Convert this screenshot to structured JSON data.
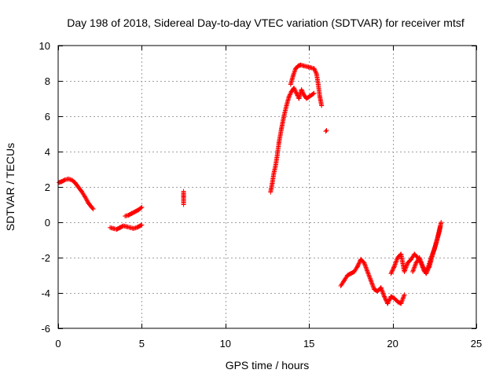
{
  "chart_data": {
    "type": "scatter",
    "title": "Day 198 of 2018, Sidereal Day-to-day VTEC variation (SDTVAR) for receiver mtsf",
    "xlabel": "GPS time / hours",
    "ylabel": "SDTVAR / TECUs",
    "xlim": [
      0,
      25
    ],
    "ylim": [
      -6,
      10
    ],
    "xticks": [
      0,
      5,
      10,
      15,
      20,
      25
    ],
    "yticks": [
      -6,
      -4,
      -2,
      0,
      2,
      4,
      6,
      8,
      10
    ],
    "grid": true,
    "marker": "plus",
    "series": [
      {
        "name": "SDTVAR",
        "color": "#ff0000",
        "segments": [
          [
            [
              0.05,
              2.25
            ],
            [
              0.2,
              2.3
            ],
            [
              0.4,
              2.4
            ],
            [
              0.6,
              2.45
            ],
            [
              0.8,
              2.4
            ],
            [
              1.0,
              2.25
            ],
            [
              1.2,
              2.0
            ],
            [
              1.4,
              1.75
            ],
            [
              1.6,
              1.45
            ],
            [
              1.8,
              1.1
            ],
            [
              2.0,
              0.85
            ],
            [
              2.1,
              0.75
            ]
          ],
          [
            [
              3.1,
              -0.3
            ],
            [
              3.3,
              -0.35
            ],
            [
              3.5,
              -0.4
            ],
            [
              3.7,
              -0.3
            ],
            [
              3.9,
              -0.2
            ],
            [
              4.1,
              -0.25
            ],
            [
              4.3,
              -0.3
            ],
            [
              4.5,
              -0.35
            ],
            [
              4.7,
              -0.3
            ],
            [
              4.9,
              -0.2
            ],
            [
              5.0,
              -0.15
            ]
          ],
          [
            [
              4.0,
              0.35
            ],
            [
              4.2,
              0.4
            ],
            [
              4.4,
              0.5
            ],
            [
              4.6,
              0.6
            ],
            [
              4.8,
              0.7
            ],
            [
              5.0,
              0.85
            ]
          ],
          [
            [
              7.5,
              1.0
            ],
            [
              7.5,
              1.2
            ],
            [
              7.5,
              1.5
            ],
            [
              7.5,
              1.75
            ]
          ],
          [
            [
              12.7,
              1.7
            ],
            [
              12.8,
              2.2
            ],
            [
              12.9,
              2.8
            ],
            [
              13.0,
              3.2
            ],
            [
              13.1,
              3.8
            ],
            [
              13.2,
              4.5
            ],
            [
              13.35,
              5.3
            ],
            [
              13.5,
              6.0
            ],
            [
              13.65,
              6.6
            ],
            [
              13.8,
              7.1
            ],
            [
              13.95,
              7.4
            ],
            [
              14.1,
              7.6
            ],
            [
              14.25,
              7.3
            ],
            [
              14.4,
              7.0
            ],
            [
              14.55,
              7.5
            ],
            [
              14.7,
              7.2
            ],
            [
              14.85,
              7.0
            ],
            [
              15.0,
              7.1
            ],
            [
              15.15,
              7.2
            ],
            [
              15.3,
              7.3
            ]
          ],
          [
            [
              13.9,
              7.8
            ],
            [
              14.05,
              8.3
            ],
            [
              14.2,
              8.7
            ],
            [
              14.35,
              8.85
            ],
            [
              14.5,
              8.9
            ],
            [
              14.7,
              8.85
            ],
            [
              14.9,
              8.8
            ],
            [
              15.1,
              8.75
            ],
            [
              15.3,
              8.7
            ],
            [
              15.45,
              8.4
            ],
            [
              15.55,
              7.8
            ],
            [
              15.65,
              7.1
            ],
            [
              15.75,
              6.6
            ]
          ],
          [
            [
              16.0,
              5.15
            ],
            [
              16.05,
              5.2
            ]
          ],
          [
            [
              16.9,
              -3.6
            ],
            [
              17.1,
              -3.3
            ],
            [
              17.3,
              -3.0
            ],
            [
              17.5,
              -2.9
            ],
            [
              17.7,
              -2.8
            ],
            [
              17.9,
              -2.5
            ],
            [
              18.1,
              -2.1
            ],
            [
              18.3,
              -2.3
            ],
            [
              18.5,
              -2.8
            ],
            [
              18.7,
              -3.3
            ],
            [
              18.9,
              -3.8
            ],
            [
              19.1,
              -3.9
            ],
            [
              19.3,
              -3.7
            ],
            [
              19.5,
              -4.2
            ],
            [
              19.7,
              -4.6
            ],
            [
              19.9,
              -4.2
            ],
            [
              20.1,
              -4.3
            ],
            [
              20.3,
              -4.5
            ],
            [
              20.5,
              -4.6
            ],
            [
              20.7,
              -4.1
            ]
          ],
          [
            [
              19.9,
              -2.9
            ],
            [
              20.1,
              -2.5
            ],
            [
              20.3,
              -2.0
            ],
            [
              20.5,
              -1.8
            ],
            [
              20.7,
              -2.8
            ],
            [
              20.9,
              -2.3
            ],
            [
              21.1,
              -2.1
            ],
            [
              21.3,
              -1.8
            ],
            [
              21.5,
              -2.0
            ],
            [
              21.7,
              -2.3
            ],
            [
              21.9,
              -2.8
            ],
            [
              22.1,
              -2.6
            ],
            [
              22.3,
              -2.0
            ],
            [
              22.5,
              -1.5
            ],
            [
              22.7,
              -0.8
            ],
            [
              22.85,
              -0.2
            ]
          ],
          [
            [
              21.2,
              -2.8
            ],
            [
              21.4,
              -2.3
            ],
            [
              21.6,
              -2.0
            ],
            [
              21.8,
              -2.5
            ],
            [
              22.0,
              -2.9
            ],
            [
              22.2,
              -2.5
            ],
            [
              22.4,
              -1.8
            ],
            [
              22.6,
              -1.2
            ],
            [
              22.8,
              -0.5
            ],
            [
              22.9,
              0.0
            ]
          ]
        ]
      }
    ]
  }
}
